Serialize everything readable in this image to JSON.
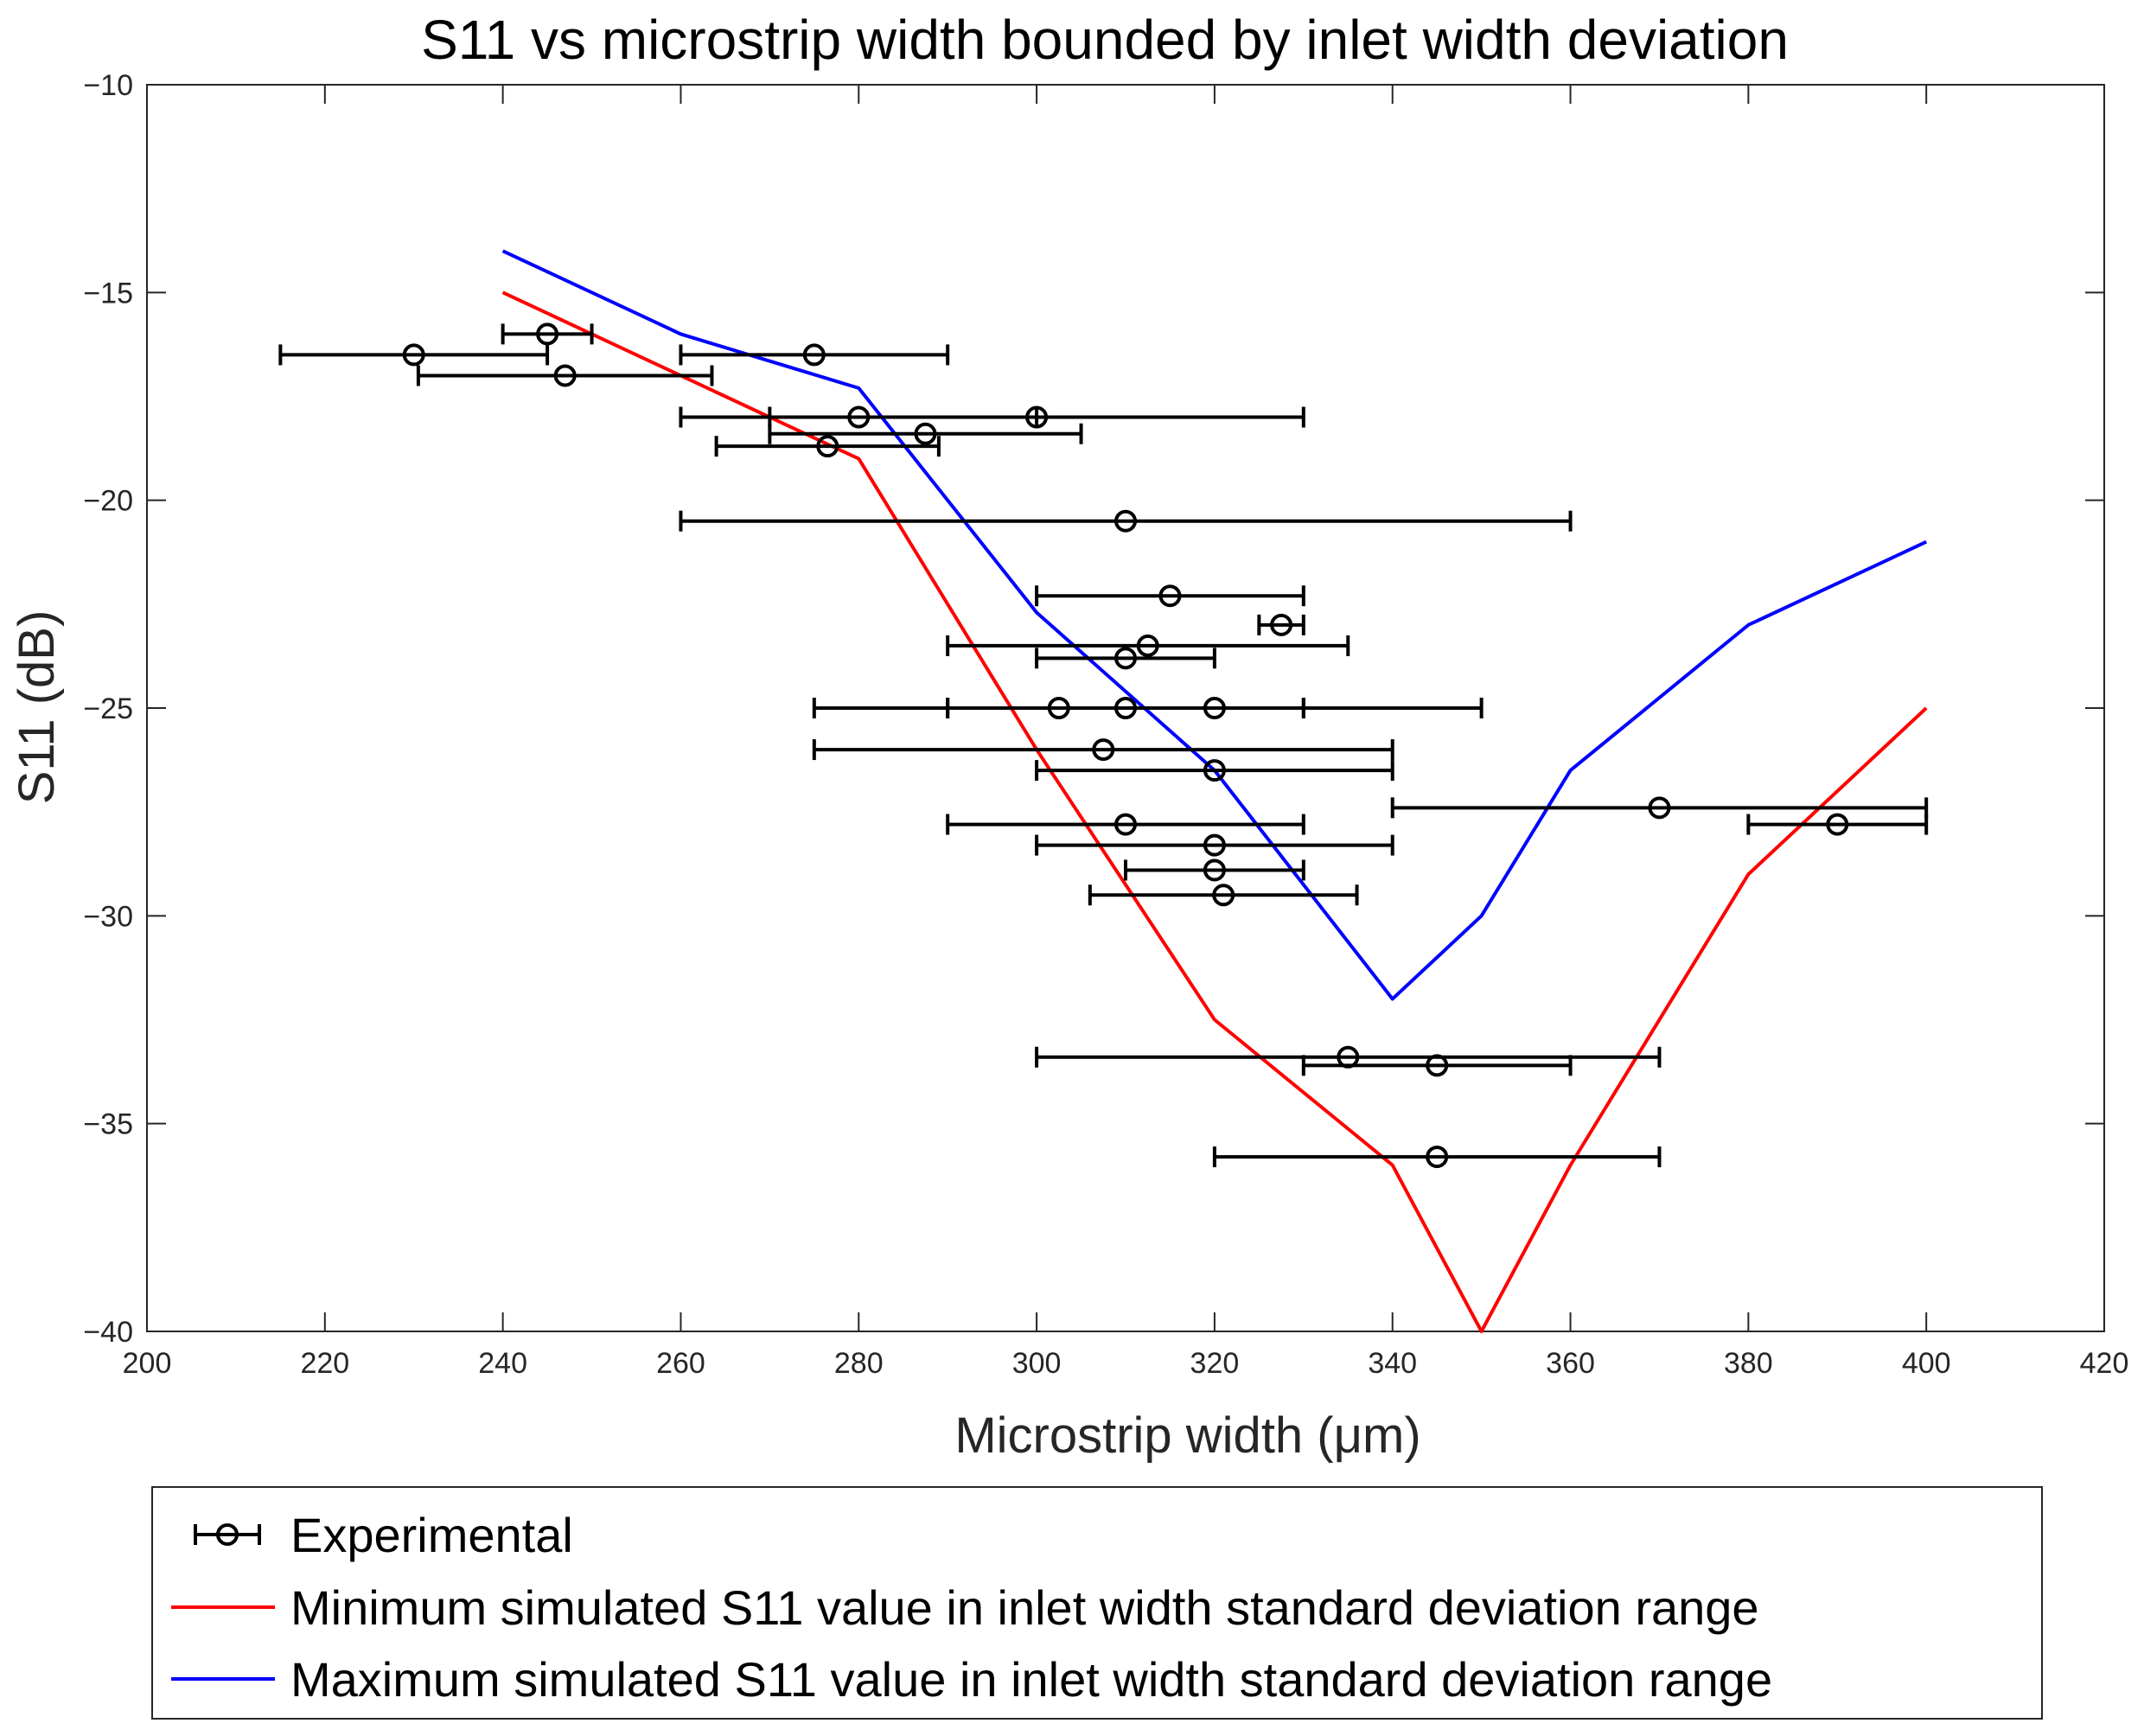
{
  "chart_data": {
    "type": "line",
    "title": "S11 vs microstrip width bounded by inlet width deviation",
    "xlabel": "Microstrip width (μm)",
    "ylabel": "S11 (dB)",
    "xlim": [
      200,
      420
    ],
    "ylim": [
      -40,
      -10
    ],
    "xticks": [
      200,
      220,
      240,
      260,
      280,
      300,
      320,
      340,
      360,
      380,
      400,
      420
    ],
    "yticks": [
      -10,
      -15,
      -20,
      -25,
      -30,
      -35,
      -40
    ],
    "xtick_labels": [
      "200",
      "220",
      "240",
      "260",
      "280",
      "300",
      "320",
      "340",
      "360",
      "380",
      "400",
      "420"
    ],
    "ytick_labels": [
      "−10",
      "−15",
      "−20",
      "−25",
      "−30",
      "−35",
      "−40"
    ],
    "grid": false,
    "legend_position": "below-plot",
    "series": [
      {
        "name": "Experimental",
        "kind": "errorbar-x",
        "color": "#000000",
        "marker": "circle",
        "points": [
          {
            "x": 230,
            "y": -16.5,
            "xmin": 215,
            "xmax": 245
          },
          {
            "x": 245,
            "y": -16.0,
            "xmin": 240,
            "xmax": 250
          },
          {
            "x": 247,
            "y": -17.0,
            "xmin": 230.5,
            "xmax": 263.5
          },
          {
            "x": 275,
            "y": -16.5,
            "xmin": 260,
            "xmax": 290
          },
          {
            "x": 280,
            "y": -18.0,
            "xmin": 260,
            "xmax": 300
          },
          {
            "x": 300,
            "y": -18.0,
            "xmin": 270,
            "xmax": 330
          },
          {
            "x": 287.5,
            "y": -18.4,
            "xmin": 270,
            "xmax": 305
          },
          {
            "x": 276.5,
            "y": -18.7,
            "xmin": 264,
            "xmax": 289
          },
          {
            "x": 310,
            "y": -20.5,
            "xmin": 260,
            "xmax": 360
          },
          {
            "x": 315,
            "y": -22.3,
            "xmin": 300,
            "xmax": 330
          },
          {
            "x": 327.5,
            "y": -23.0,
            "xmin": 325,
            "xmax": 330
          },
          {
            "x": 312.5,
            "y": -23.5,
            "xmin": 290,
            "xmax": 335
          },
          {
            "x": 310,
            "y": -23.8,
            "xmin": 300,
            "xmax": 320
          },
          {
            "x": 302.5,
            "y": -25.0,
            "xmin": 275,
            "xmax": 330
          },
          {
            "x": 310,
            "y": -25.0,
            "xmin": 290,
            "xmax": 330
          },
          {
            "x": 320,
            "y": -25.0,
            "xmin": 290,
            "xmax": 350
          },
          {
            "x": 307.5,
            "y": -26.0,
            "xmin": 275,
            "xmax": 340
          },
          {
            "x": 320,
            "y": -26.5,
            "xmin": 300,
            "xmax": 340
          },
          {
            "x": 370,
            "y": -27.4,
            "xmin": 340,
            "xmax": 400
          },
          {
            "x": 390,
            "y": -27.8,
            "xmin": 380,
            "xmax": 400
          },
          {
            "x": 310,
            "y": -27.8,
            "xmin": 290,
            "xmax": 330
          },
          {
            "x": 320,
            "y": -28.3,
            "xmin": 300,
            "xmax": 340
          },
          {
            "x": 320,
            "y": -28.9,
            "xmin": 310,
            "xmax": 330
          },
          {
            "x": 321,
            "y": -29.5,
            "xmin": 306,
            "xmax": 336
          },
          {
            "x": 335,
            "y": -33.4,
            "xmin": 300,
            "xmax": 370
          },
          {
            "x": 345,
            "y": -33.6,
            "xmin": 330,
            "xmax": 360
          },
          {
            "x": 345,
            "y": -35.8,
            "xmin": 320,
            "xmax": 370
          }
        ]
      },
      {
        "name": "Minimum simulated S11 value in inlet width standard deviation range",
        "kind": "line",
        "color": "#ff0000",
        "x": [
          240,
          260,
          280,
          300,
          320,
          340,
          350,
          360,
          380,
          400
        ],
        "y": [
          -15,
          -17,
          -19,
          -26,
          -32.5,
          -36,
          -40,
          -36,
          -29,
          -25
        ]
      },
      {
        "name": "Maximum simulated S11 value in inlet width standard deviation range",
        "kind": "line",
        "color": "#0000ff",
        "x": [
          240,
          260,
          280,
          300,
          320,
          340,
          350,
          360,
          380,
          400
        ],
        "y": [
          -14,
          -16,
          -17.3,
          -22.7,
          -26.5,
          -32,
          -30,
          -26.5,
          -23,
          -21
        ]
      }
    ]
  }
}
